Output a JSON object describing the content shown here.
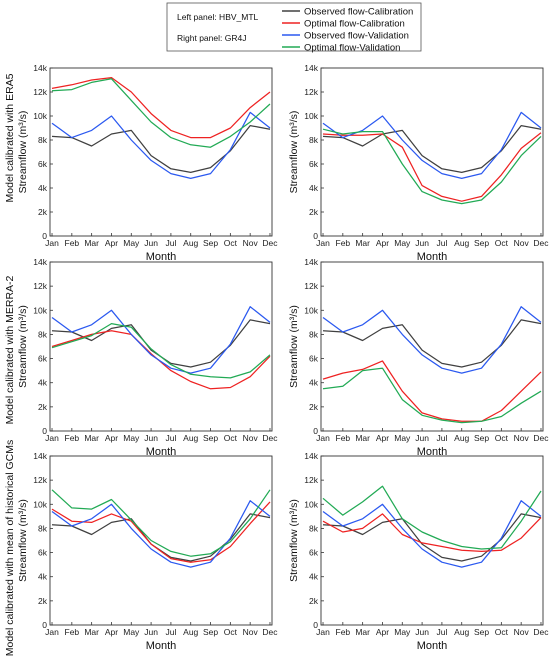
{
  "colors": {
    "obs_cal": "#404040",
    "opt_cal": "#ee2222",
    "obs_val": "#2b59f0",
    "opt_val": "#22aa55"
  },
  "notes": {
    "left": "Left panel: HBV_MTL",
    "right": "Right panel: GR4J"
  },
  "legend": [
    {
      "label": "Observed flow-Calibration",
      "color": "#404040"
    },
    {
      "label": "Optimal flow-Calibration",
      "color": "#ee2222"
    },
    {
      "label": "Observed flow-Validation",
      "color": "#2b59f0"
    },
    {
      "label": "Optimal flow-Validation",
      "color": "#22aa55"
    }
  ],
  "row_labels": [
    "Model calibrated with ERA5",
    "Model calibrated with MERRA-2",
    "Model calibrated with mean of historical GCMs"
  ],
  "axis": {
    "ylabel": "Streamflow (m³/s)",
    "xlabel": "Month",
    "ylim": [
      0,
      14000
    ],
    "yticks": [
      "0",
      "2k",
      "4k",
      "6k",
      "8k",
      "10k",
      "12k",
      "14k"
    ]
  },
  "chart_data": [
    {
      "type": "line",
      "row": 0,
      "col": 0,
      "categories": [
        "Jan",
        "Feb",
        "Mar",
        "Apr",
        "May",
        "Jun",
        "Jul",
        "Aug",
        "Sep",
        "Oct",
        "Nov",
        "Dec"
      ],
      "series": [
        {
          "name": "Observed flow-Calibration",
          "values": [
            8300,
            8200,
            7500,
            8500,
            8800,
            6700,
            5600,
            5300,
            5700,
            7100,
            9200,
            8900
          ]
        },
        {
          "name": "Optimal flow-Calibration",
          "values": [
            12300,
            12600,
            13000,
            13200,
            12000,
            10200,
            8800,
            8200,
            8200,
            9000,
            10700,
            12000
          ]
        },
        {
          "name": "Observed flow-Validation",
          "values": [
            9400,
            8200,
            8800,
            10000,
            8000,
            6300,
            5200,
            4800,
            5200,
            7200,
            10300,
            9000
          ]
        },
        {
          "name": "Optimal flow-Validation",
          "values": [
            12100,
            12200,
            12800,
            13100,
            11300,
            9500,
            8200,
            7600,
            7400,
            8300,
            9500,
            11000
          ]
        }
      ]
    },
    {
      "type": "line",
      "row": 0,
      "col": 1,
      "categories": [
        "Jan",
        "Feb",
        "Mar",
        "Apr",
        "May",
        "Jun",
        "Jul",
        "Aug",
        "Sep",
        "Oct",
        "Nov",
        "Dec"
      ],
      "series": [
        {
          "name": "Observed flow-Calibration",
          "values": [
            8300,
            8200,
            7500,
            8500,
            8800,
            6700,
            5600,
            5300,
            5700,
            7100,
            9200,
            8900
          ]
        },
        {
          "name": "Optimal flow-Calibration",
          "values": [
            8500,
            8400,
            8400,
            8500,
            7400,
            4200,
            3300,
            2900,
            3300,
            5100,
            7300,
            8600
          ]
        },
        {
          "name": "Observed flow-Validation",
          "values": [
            9400,
            8200,
            8800,
            10000,
            8000,
            6300,
            5200,
            4800,
            5200,
            7200,
            10300,
            9000
          ]
        },
        {
          "name": "Optimal flow-Validation",
          "values": [
            8900,
            8500,
            8700,
            8700,
            6000,
            3700,
            3000,
            2700,
            3000,
            4500,
            6700,
            8300
          ]
        }
      ]
    },
    {
      "type": "line",
      "row": 1,
      "col": 0,
      "categories": [
        "Jan",
        "Feb",
        "Mar",
        "Apr",
        "May",
        "Jun",
        "Jul",
        "Aug",
        "Sep",
        "Oct",
        "Nov",
        "Dec"
      ],
      "series": [
        {
          "name": "Observed flow-Calibration",
          "values": [
            8300,
            8200,
            7500,
            8500,
            8800,
            6700,
            5600,
            5300,
            5700,
            7100,
            9200,
            8900
          ]
        },
        {
          "name": "Optimal flow-Calibration",
          "values": [
            7000,
            7500,
            8000,
            8300,
            8000,
            6400,
            5000,
            4100,
            3500,
            3600,
            4500,
            6200
          ]
        },
        {
          "name": "Observed flow-Validation",
          "values": [
            9400,
            8200,
            8800,
            10000,
            8000,
            6300,
            5200,
            4800,
            5200,
            7200,
            10300,
            9000
          ]
        },
        {
          "name": "Optimal flow-Validation",
          "values": [
            6900,
            7400,
            7900,
            8900,
            8600,
            6800,
            5500,
            4700,
            4500,
            4400,
            4900,
            6300
          ]
        }
      ]
    },
    {
      "type": "line",
      "row": 1,
      "col": 1,
      "categories": [
        "Jan",
        "Feb",
        "Mar",
        "Apr",
        "May",
        "Jun",
        "Jul",
        "Aug",
        "Sep",
        "Oct",
        "Nov",
        "Dec"
      ],
      "series": [
        {
          "name": "Observed flow-Calibration",
          "values": [
            8300,
            8200,
            7500,
            8500,
            8800,
            6700,
            5600,
            5300,
            5700,
            7100,
            9200,
            8900
          ]
        },
        {
          "name": "Optimal flow-Calibration",
          "values": [
            4300,
            4800,
            5100,
            5800,
            3300,
            1500,
            1000,
            800,
            800,
            1700,
            3300,
            4900
          ]
        },
        {
          "name": "Observed flow-Validation",
          "values": [
            9400,
            8200,
            8800,
            10000,
            8000,
            6300,
            5200,
            4800,
            5200,
            7200,
            10300,
            9000
          ]
        },
        {
          "name": "Optimal flow-Validation",
          "values": [
            3500,
            3700,
            5000,
            5200,
            2600,
            1300,
            900,
            700,
            800,
            1200,
            2300,
            3300
          ]
        }
      ]
    },
    {
      "type": "line",
      "row": 2,
      "col": 0,
      "categories": [
        "Jan",
        "Feb",
        "Mar",
        "Apr",
        "May",
        "Jun",
        "Jul",
        "Aug",
        "Sep",
        "Oct",
        "Nov",
        "Dec"
      ],
      "series": [
        {
          "name": "Observed flow-Calibration",
          "values": [
            8300,
            8200,
            7500,
            8500,
            8800,
            6700,
            5600,
            5300,
            5700,
            7100,
            9200,
            8900
          ]
        },
        {
          "name": "Optimal flow-Calibration",
          "values": [
            9600,
            8600,
            8500,
            9200,
            8600,
            6700,
            5500,
            5200,
            5400,
            6500,
            8400,
            10200
          ]
        },
        {
          "name": "Observed flow-Validation",
          "values": [
            9400,
            8200,
            8800,
            10000,
            8000,
            6300,
            5200,
            4800,
            5200,
            7200,
            10300,
            9000
          ]
        },
        {
          "name": "Optimal flow-Validation",
          "values": [
            11200,
            9700,
            9600,
            10400,
            8700,
            7000,
            6100,
            5700,
            5900,
            6900,
            8800,
            11200
          ]
        }
      ]
    },
    {
      "type": "line",
      "row": 2,
      "col": 1,
      "categories": [
        "Jan",
        "Feb",
        "Mar",
        "Apr",
        "May",
        "Jun",
        "Jul",
        "Aug",
        "Sep",
        "Oct",
        "Nov",
        "Dec"
      ],
      "series": [
        {
          "name": "Observed flow-Calibration",
          "values": [
            8300,
            8200,
            7500,
            8500,
            8800,
            6700,
            5600,
            5300,
            5700,
            7100,
            9200,
            8900
          ]
        },
        {
          "name": "Optimal flow-Calibration",
          "values": [
            8600,
            7700,
            8000,
            9200,
            7500,
            6800,
            6500,
            6200,
            6100,
            6200,
            7200,
            8900
          ]
        },
        {
          "name": "Observed flow-Validation",
          "values": [
            9400,
            8200,
            8800,
            10000,
            8000,
            6300,
            5200,
            4800,
            5200,
            7200,
            10300,
            9000
          ]
        },
        {
          "name": "Optimal flow-Validation",
          "values": [
            10500,
            9100,
            10200,
            11500,
            8800,
            7700,
            7000,
            6500,
            6300,
            6400,
            8600,
            11100
          ]
        }
      ]
    }
  ]
}
